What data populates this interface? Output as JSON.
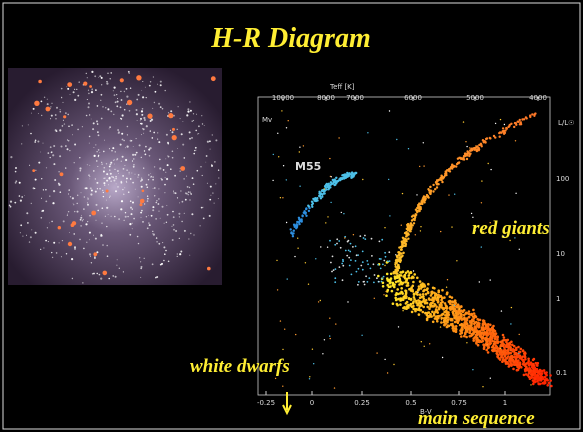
{
  "title": "H-R Diagram",
  "annotations": {
    "red_giants": "red giants",
    "white_dwarfs": "white dwarfs",
    "main_sequence": "main sequence"
  },
  "diagram": {
    "cluster_name": "M55",
    "top_axis_label": "Teff [K]",
    "top_ticks": [
      "10000",
      "8000",
      "7000",
      "6000",
      "5000",
      "4000"
    ],
    "bottom_axis_label": "B-V",
    "bottom_ticks": [
      "-0.25",
      "0",
      "0.25",
      "0.5",
      "0.75",
      "1"
    ],
    "left_axis_label": "Mv",
    "right_axis_label": "L/L☉",
    "right_ticks": [
      "100",
      "10",
      "1",
      "0.1"
    ]
  }
}
